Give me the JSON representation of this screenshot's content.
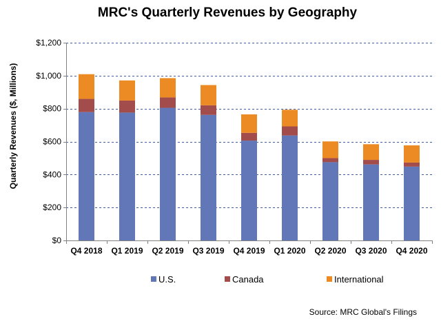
{
  "chart_data": {
    "type": "bar",
    "stacked": true,
    "title": "MRC's Quarterly Revenues by Geography",
    "xlabel": "",
    "ylabel": "Quarterly Revenues ($, Millions)",
    "categories": [
      "Q4 2018",
      "Q1 2019",
      "Q2 2019",
      "Q3 2019",
      "Q4 2019",
      "Q1 2020",
      "Q2 2020",
      "Q3 2020",
      "Q4 2020"
    ],
    "series": [
      {
        "name": "U.S.",
        "color": "#6277b7",
        "values": [
          779,
          776,
          805,
          762,
          606,
          637,
          475,
          461,
          448
        ]
      },
      {
        "name": "Canada",
        "color": "#a24c4c",
        "values": [
          80,
          73,
          63,
          58,
          47,
          55,
          25,
          28,
          25
        ]
      },
      {
        "name": "International",
        "color": "#ec8a24",
        "values": [
          150,
          122,
          117,
          123,
          112,
          101,
          101,
          95,
          104
        ]
      }
    ],
    "ylim": [
      0,
      1200
    ],
    "yticks": [
      0,
      200,
      400,
      600,
      800,
      1000,
      1200
    ],
    "ytick_labels": [
      "$0",
      "$200",
      "$400",
      "$600",
      "$800",
      "$1,000",
      "$1,200"
    ],
    "grid": "horizontal dashed",
    "legend": "bottom",
    "source": "Source: MRC Global's Filings"
  }
}
